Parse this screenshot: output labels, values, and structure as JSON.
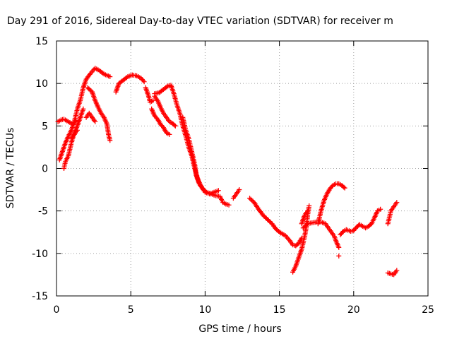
{
  "chart_data": {
    "type": "scatter",
    "title": "Day 291 of 2016, Sidereal Day-to-day VTEC variation (SDTVAR) for receiver m",
    "xlabel": "GPS time / hours",
    "ylabel": "SDTVAR / TECUs",
    "xlim": [
      0,
      25
    ],
    "ylim": [
      -15,
      15
    ],
    "x_ticks": [
      0,
      5,
      10,
      15,
      20,
      25
    ],
    "y_ticks": [
      -15,
      -10,
      -5,
      0,
      5,
      10,
      15
    ],
    "grid": true,
    "marker": "+",
    "color": "#ff0000",
    "series": [
      {
        "segments": [
          [
            [
              0.2,
              1.0
            ],
            [
              0.4,
              2.0
            ],
            [
              0.6,
              3.0
            ],
            [
              0.8,
              3.8
            ],
            [
              1.0,
              4.5
            ],
            [
              1.2,
              5.5
            ],
            [
              1.4,
              7.0
            ],
            [
              1.6,
              8.0
            ],
            [
              1.8,
              9.5
            ],
            [
              2.0,
              10.5
            ],
            [
              2.3,
              11.2
            ],
            [
              2.6,
              11.8
            ],
            [
              2.9,
              11.5
            ],
            [
              3.2,
              11.1
            ],
            [
              3.6,
              10.8
            ]
          ],
          [
            [
              0.1,
              5.5
            ],
            [
              0.3,
              5.7
            ],
            [
              0.5,
              5.8
            ],
            [
              0.7,
              5.6
            ],
            [
              0.9,
              5.4
            ],
            [
              1.1,
              5.2
            ],
            [
              1.3,
              5.6
            ]
          ],
          [
            [
              0.5,
              0.0
            ],
            [
              0.6,
              0.8
            ],
            [
              0.8,
              1.5
            ],
            [
              1.0,
              3.0
            ],
            [
              1.2,
              4.2
            ],
            [
              1.4,
              5.0
            ],
            [
              1.6,
              6.0
            ],
            [
              1.8,
              7.0
            ]
          ],
          [
            [
              1.0,
              3.5
            ],
            [
              1.2,
              4.0
            ],
            [
              1.4,
              4.5
            ]
          ],
          [
            [
              2.0,
              6.0
            ],
            [
              2.2,
              6.5
            ],
            [
              2.4,
              6.0
            ],
            [
              2.6,
              5.5
            ]
          ],
          [
            [
              2.1,
              9.5
            ],
            [
              2.4,
              9.0
            ],
            [
              2.6,
              8.0
            ],
            [
              2.8,
              7.2
            ],
            [
              3.0,
              6.5
            ],
            [
              3.2,
              6.0
            ],
            [
              3.4,
              5.2
            ],
            [
              3.5,
              4.0
            ],
            [
              3.6,
              3.3
            ]
          ],
          [
            [
              4.0,
              9.0
            ],
            [
              4.2,
              10.0
            ],
            [
              4.5,
              10.4
            ],
            [
              4.8,
              10.8
            ],
            [
              5.1,
              11.0
            ],
            [
              5.4,
              10.9
            ],
            [
              5.7,
              10.6
            ],
            [
              5.9,
              10.2
            ]
          ],
          [
            [
              6.0,
              9.5
            ],
            [
              6.2,
              8.5
            ],
            [
              6.3,
              7.8
            ],
            [
              6.5,
              8.0
            ]
          ],
          [
            [
              6.4,
              7.0
            ],
            [
              6.6,
              6.2
            ],
            [
              6.8,
              5.8
            ],
            [
              7.0,
              5.2
            ],
            [
              7.2,
              4.8
            ],
            [
              7.4,
              4.2
            ],
            [
              7.6,
              4.0
            ]
          ],
          [
            [
              6.6,
              8.5
            ],
            [
              6.8,
              8.0
            ],
            [
              7.0,
              7.2
            ],
            [
              7.2,
              6.5
            ],
            [
              7.4,
              6.0
            ],
            [
              7.6,
              5.5
            ],
            [
              7.8,
              5.3
            ],
            [
              8.0,
              5.0
            ]
          ],
          [
            [
              6.6,
              8.8
            ],
            [
              6.9,
              8.9
            ],
            [
              7.2,
              9.3
            ],
            [
              7.5,
              9.7
            ],
            [
              7.7,
              9.8
            ],
            [
              7.9,
              8.8
            ],
            [
              8.1,
              7.5
            ],
            [
              8.3,
              6.5
            ],
            [
              8.5,
              5.0
            ],
            [
              8.7,
              3.8
            ],
            [
              8.9,
              2.5
            ],
            [
              9.1,
              1.5
            ],
            [
              9.3,
              0.0
            ],
            [
              9.5,
              -1.2
            ],
            [
              9.7,
              -2.0
            ],
            [
              9.9,
              -2.5
            ],
            [
              10.1,
              -2.8
            ],
            [
              10.4,
              -3.0
            ],
            [
              10.7,
              -3.2
            ],
            [
              11.0,
              -3.3
            ],
            [
              11.2,
              -4.0
            ],
            [
              11.4,
              -4.2
            ],
            [
              11.6,
              -4.3
            ]
          ],
          [
            [
              8.5,
              6.0
            ],
            [
              8.7,
              4.5
            ],
            [
              8.9,
              3.5
            ],
            [
              9.1,
              2.0
            ],
            [
              9.3,
              0.5
            ],
            [
              9.4,
              -0.8
            ],
            [
              9.6,
              -1.8
            ],
            [
              9.8,
              -2.3
            ],
            [
              10.0,
              -2.8
            ],
            [
              10.3,
              -3.0
            ],
            [
              10.6,
              -2.8
            ],
            [
              10.9,
              -2.6
            ]
          ],
          [
            [
              11.9,
              -3.5
            ],
            [
              12.1,
              -3.0
            ],
            [
              12.3,
              -2.5
            ]
          ],
          [
            [
              13.0,
              -3.5
            ],
            [
              13.3,
              -4.0
            ],
            [
              13.6,
              -4.8
            ],
            [
              13.9,
              -5.5
            ],
            [
              14.2,
              -6.0
            ],
            [
              14.5,
              -6.5
            ],
            [
              14.8,
              -7.2
            ],
            [
              15.1,
              -7.6
            ],
            [
              15.4,
              -7.9
            ],
            [
              15.7,
              -8.5
            ],
            [
              15.9,
              -9.0
            ],
            [
              16.1,
              -9.1
            ],
            [
              16.3,
              -8.8
            ],
            [
              16.5,
              -8.2
            ]
          ],
          [
            [
              15.9,
              -12.2
            ],
            [
              16.1,
              -11.5
            ],
            [
              16.3,
              -10.5
            ],
            [
              16.5,
              -9.5
            ],
            [
              16.7,
              -8.0
            ],
            [
              16.8,
              -7.0
            ],
            [
              16.9,
              -5.5
            ],
            [
              17.0,
              -4.4
            ]
          ],
          [
            [
              16.6,
              -7.0
            ],
            [
              16.9,
              -6.5
            ],
            [
              17.2,
              -6.4
            ],
            [
              17.5,
              -6.3
            ],
            [
              17.8,
              -6.3
            ],
            [
              18.1,
              -6.5
            ],
            [
              18.3,
              -7.0
            ],
            [
              18.5,
              -7.5
            ],
            [
              18.7,
              -8.0
            ],
            [
              18.8,
              -8.5
            ],
            [
              19.0,
              -9.3
            ]
          ],
          [
            [
              16.5,
              -6.5
            ],
            [
              16.7,
              -5.5
            ],
            [
              16.9,
              -5.0
            ]
          ],
          [
            [
              17.6,
              -6.5
            ],
            [
              17.8,
              -5.0
            ],
            [
              18.0,
              -3.8
            ],
            [
              18.2,
              -3.0
            ],
            [
              18.4,
              -2.4
            ],
            [
              18.6,
              -2.0
            ],
            [
              18.8,
              -1.8
            ],
            [
              19.0,
              -1.8
            ],
            [
              19.2,
              -2.0
            ],
            [
              19.4,
              -2.3
            ]
          ],
          [
            [
              19.0,
              -10.3
            ]
          ],
          [
            [
              19.1,
              -7.8
            ],
            [
              19.3,
              -7.4
            ],
            [
              19.5,
              -7.2
            ],
            [
              19.8,
              -7.4
            ],
            [
              20.0,
              -7.3
            ],
            [
              20.2,
              -6.9
            ],
            [
              20.4,
              -6.6
            ],
            [
              20.6,
              -6.8
            ],
            [
              20.8,
              -7.0
            ],
            [
              21.0,
              -6.8
            ],
            [
              21.2,
              -6.5
            ],
            [
              21.4,
              -5.8
            ],
            [
              21.6,
              -5.0
            ],
            [
              21.8,
              -4.8
            ]
          ],
          [
            [
              22.3,
              -6.5
            ],
            [
              22.4,
              -5.8
            ],
            [
              22.5,
              -5.0
            ],
            [
              22.7,
              -4.5
            ],
            [
              22.9,
              -4.0
            ]
          ],
          [
            [
              22.3,
              -12.3
            ],
            [
              22.5,
              -12.4
            ],
            [
              22.7,
              -12.5
            ],
            [
              22.9,
              -12.0
            ]
          ]
        ]
      }
    ]
  }
}
